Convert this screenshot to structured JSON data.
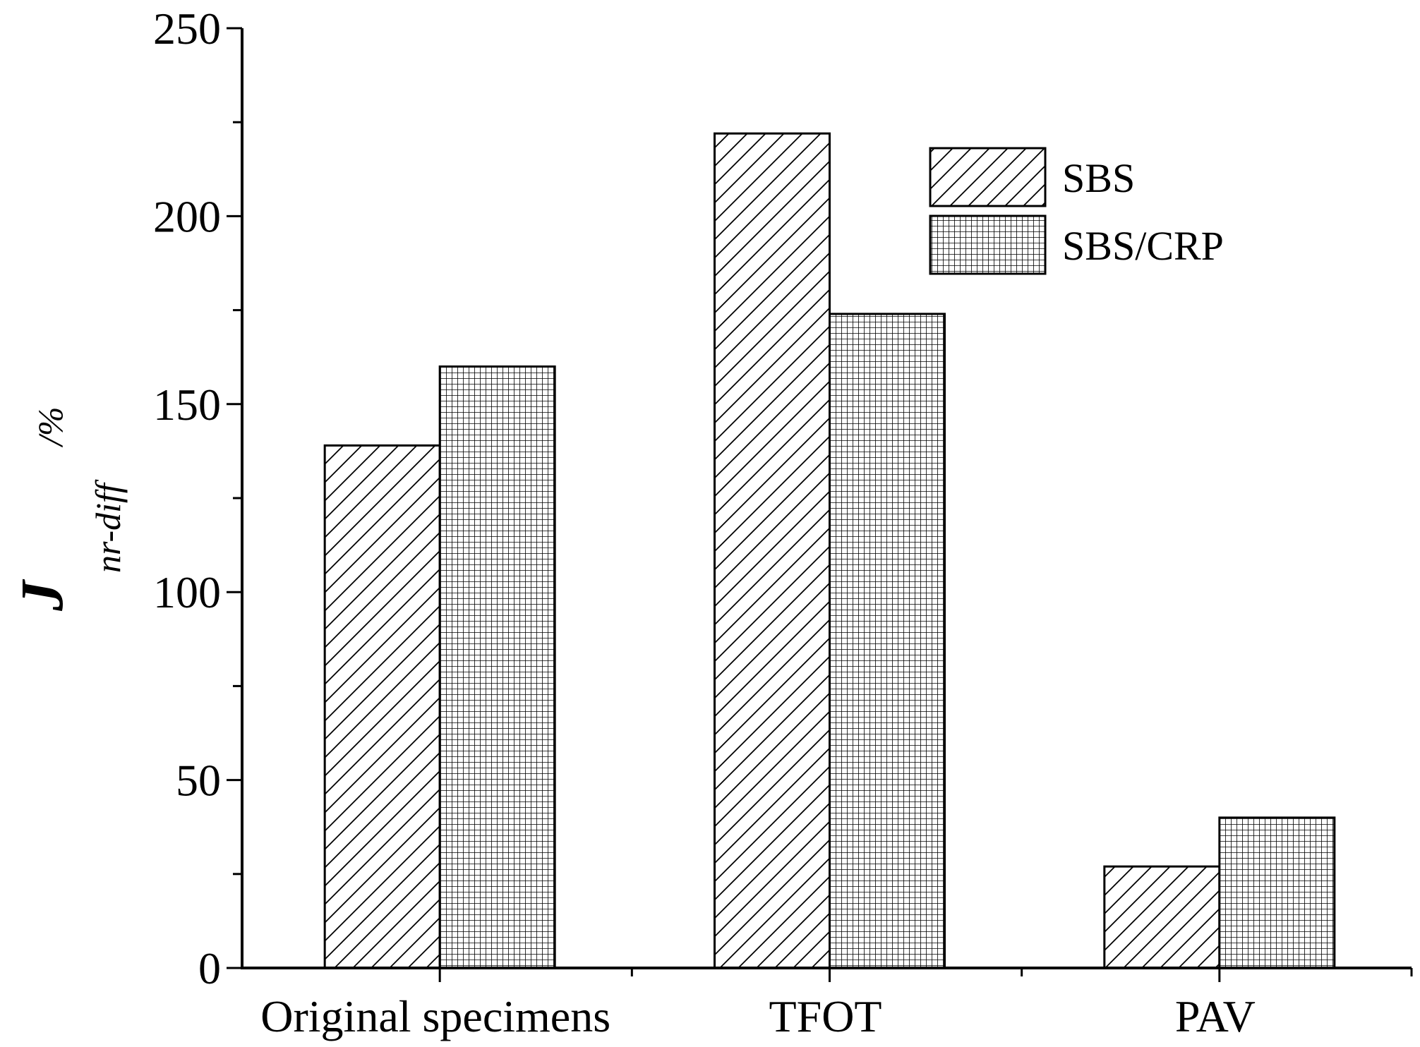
{
  "chart_data": {
    "type": "bar",
    "title": "",
    "xlabel": "",
    "ylabel": {
      "main": "J",
      "subscript": "nr-diff",
      "superscript": "/%"
    },
    "categories": [
      "Original specimens",
      "TFOT",
      "PAV"
    ],
    "series": [
      {
        "name": "SBS",
        "values": [
          139,
          222,
          27
        ],
        "pattern": "diagonal"
      },
      {
        "name": "SBS/CRP",
        "values": [
          160,
          174,
          40
        ],
        "pattern": "grid"
      }
    ],
    "ylim": [
      0,
      250
    ],
    "yticks": [
      0,
      50,
      100,
      150,
      200,
      250
    ],
    "grid": false,
    "legend": "top-right",
    "colors": {
      "stroke": "#000000",
      "fill": "#ffffff"
    }
  }
}
